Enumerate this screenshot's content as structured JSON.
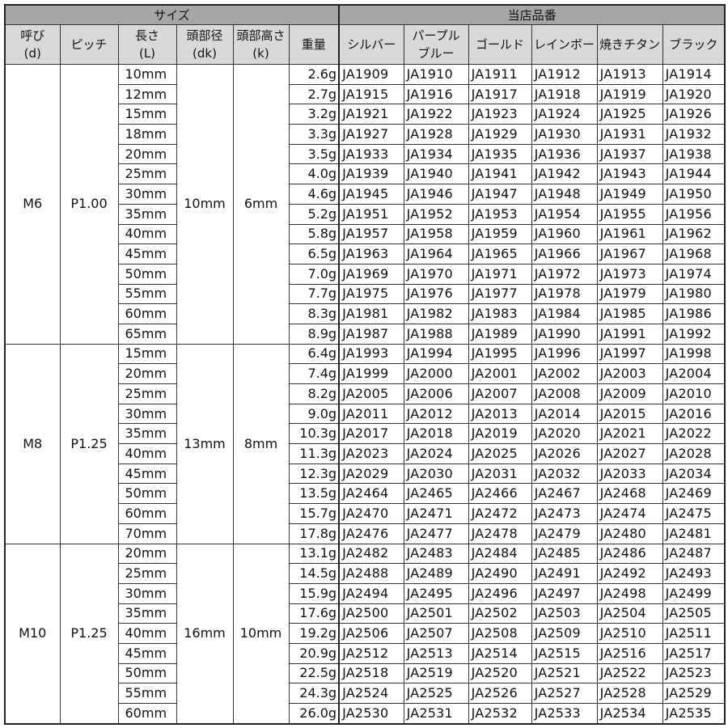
{
  "header": {
    "size_group": "サイズ",
    "code_group": "当店品番",
    "columns": {
      "nominal": [
        "呼び",
        "(d)"
      ],
      "pitch": "ピッチ",
      "length": [
        "長さ",
        "(L)"
      ],
      "head_dia": [
        "頭部径",
        "(dk)"
      ],
      "head_height": [
        "頭部高さ",
        "(k)"
      ],
      "weight": "重量",
      "colors": [
        [
          "シルバー"
        ],
        [
          "パープル",
          "ブルー"
        ],
        [
          "ゴールド"
        ],
        [
          "レインボー"
        ],
        [
          "焼きチタン"
        ],
        [
          "ブラック"
        ]
      ]
    }
  },
  "groups": [
    {
      "nominal": "M6",
      "pitch": "P1.00",
      "head_dia": "10mm",
      "head_height": "6mm",
      "rows": [
        {
          "length": "10mm",
          "weight": "2.6g",
          "codes": [
            "JA1909",
            "JA1910",
            "JA1911",
            "JA1912",
            "JA1913",
            "JA1914"
          ]
        },
        {
          "length": "12mm",
          "weight": "2.7g",
          "codes": [
            "JA1915",
            "JA1916",
            "JA1917",
            "JA1918",
            "JA1919",
            "JA1920"
          ]
        },
        {
          "length": "15mm",
          "weight": "3.2g",
          "codes": [
            "JA1921",
            "JA1922",
            "JA1923",
            "JA1924",
            "JA1925",
            "JA1926"
          ]
        },
        {
          "length": "18mm",
          "weight": "3.3g",
          "codes": [
            "JA1927",
            "JA1928",
            "JA1929",
            "JA1930",
            "JA1931",
            "JA1932"
          ]
        },
        {
          "length": "20mm",
          "weight": "3.5g",
          "codes": [
            "JA1933",
            "JA1934",
            "JA1935",
            "JA1936",
            "JA1937",
            "JA1938"
          ]
        },
        {
          "length": "25mm",
          "weight": "4.0g",
          "codes": [
            "JA1939",
            "JA1940",
            "JA1941",
            "JA1942",
            "JA1943",
            "JA1944"
          ]
        },
        {
          "length": "30mm",
          "weight": "4.6g",
          "codes": [
            "JA1945",
            "JA1946",
            "JA1947",
            "JA1948",
            "JA1949",
            "JA1950"
          ]
        },
        {
          "length": "35mm",
          "weight": "5.2g",
          "codes": [
            "JA1951",
            "JA1952",
            "JA1953",
            "JA1954",
            "JA1955",
            "JA1956"
          ]
        },
        {
          "length": "40mm",
          "weight": "5.8g",
          "codes": [
            "JA1957",
            "JA1958",
            "JA1959",
            "JA1960",
            "JA1961",
            "JA1962"
          ]
        },
        {
          "length": "45mm",
          "weight": "6.5g",
          "codes": [
            "JA1963",
            "JA1964",
            "JA1965",
            "JA1966",
            "JA1967",
            "JA1968"
          ]
        },
        {
          "length": "50mm",
          "weight": "7.0g",
          "codes": [
            "JA1969",
            "JA1970",
            "JA1971",
            "JA1972",
            "JA1973",
            "JA1974"
          ]
        },
        {
          "length": "55mm",
          "weight": "7.7g",
          "codes": [
            "JA1975",
            "JA1976",
            "JA1977",
            "JA1978",
            "JA1979",
            "JA1980"
          ]
        },
        {
          "length": "60mm",
          "weight": "8.3g",
          "codes": [
            "JA1981",
            "JA1982",
            "JA1983",
            "JA1984",
            "JA1985",
            "JA1986"
          ]
        },
        {
          "length": "65mm",
          "weight": "8.9g",
          "codes": [
            "JA1987",
            "JA1988",
            "JA1989",
            "JA1990",
            "JA1991",
            "JA1992"
          ]
        }
      ]
    },
    {
      "nominal": "M8",
      "pitch": "P1.25",
      "head_dia": "13mm",
      "head_height": "8mm",
      "rows": [
        {
          "length": "15mm",
          "weight": "6.4g",
          "codes": [
            "JA1993",
            "JA1994",
            "JA1995",
            "JA1996",
            "JA1997",
            "JA1998"
          ]
        },
        {
          "length": "20mm",
          "weight": "7.4g",
          "codes": [
            "JA1999",
            "JA2000",
            "JA2001",
            "JA2002",
            "JA2003",
            "JA2004"
          ]
        },
        {
          "length": "25mm",
          "weight": "8.2g",
          "codes": [
            "JA2005",
            "JA2006",
            "JA2007",
            "JA2008",
            "JA2009",
            "JA2010"
          ]
        },
        {
          "length": "30mm",
          "weight": "9.0g",
          "codes": [
            "JA2011",
            "JA2012",
            "JA2013",
            "JA2014",
            "JA2015",
            "JA2016"
          ]
        },
        {
          "length": "35mm",
          "weight": "10.3g",
          "codes": [
            "JA2017",
            "JA2018",
            "JA2019",
            "JA2020",
            "JA2021",
            "JA2022"
          ]
        },
        {
          "length": "40mm",
          "weight": "11.3g",
          "codes": [
            "JA2023",
            "JA2024",
            "JA2025",
            "JA2026",
            "JA2027",
            "JA2028"
          ]
        },
        {
          "length": "45mm",
          "weight": "12.3g",
          "codes": [
            "JA2029",
            "JA2030",
            "JA2031",
            "JA2032",
            "JA2033",
            "JA2034"
          ]
        },
        {
          "length": "50mm",
          "weight": "13.5g",
          "codes": [
            "JA2464",
            "JA2465",
            "JA2466",
            "JA2467",
            "JA2468",
            "JA2469"
          ]
        },
        {
          "length": "60mm",
          "weight": "15.7g",
          "codes": [
            "JA2470",
            "JA2471",
            "JA2472",
            "JA2473",
            "JA2474",
            "JA2475"
          ]
        },
        {
          "length": "70mm",
          "weight": "17.8g",
          "codes": [
            "JA2476",
            "JA2477",
            "JA2478",
            "JA2479",
            "JA2480",
            "JA2481"
          ]
        }
      ]
    },
    {
      "nominal": "M10",
      "pitch": "P1.25",
      "head_dia": "16mm",
      "head_height": "10mm",
      "rows": [
        {
          "length": "20mm",
          "weight": "13.1g",
          "codes": [
            "JA2482",
            "JA2483",
            "JA2484",
            "JA2485",
            "JA2486",
            "JA2487"
          ]
        },
        {
          "length": "25mm",
          "weight": "14.5g",
          "codes": [
            "JA2488",
            "JA2489",
            "JA2490",
            "JA2491",
            "JA2492",
            "JA2493"
          ]
        },
        {
          "length": "30mm",
          "weight": "15.9g",
          "codes": [
            "JA2494",
            "JA2495",
            "JA2496",
            "JA2497",
            "JA2498",
            "JA2499"
          ]
        },
        {
          "length": "35mm",
          "weight": "17.6g",
          "codes": [
            "JA2500",
            "JA2501",
            "JA2502",
            "JA2503",
            "JA2504",
            "JA2505"
          ]
        },
        {
          "length": "40mm",
          "weight": "19.2g",
          "codes": [
            "JA2506",
            "JA2507",
            "JA2508",
            "JA2509",
            "JA2510",
            "JA2511"
          ]
        },
        {
          "length": "45mm",
          "weight": "20.9g",
          "codes": [
            "JA2512",
            "JA2513",
            "JA2514",
            "JA2515",
            "JA2516",
            "JA2517"
          ]
        },
        {
          "length": "50mm",
          "weight": "22.5g",
          "codes": [
            "JA2518",
            "JA2519",
            "JA2520",
            "JA2521",
            "JA2522",
            "JA2523"
          ]
        },
        {
          "length": "55mm",
          "weight": "24.3g",
          "codes": [
            "JA2524",
            "JA2525",
            "JA2526",
            "JA2527",
            "JA2528",
            "JA2529"
          ]
        },
        {
          "length": "60mm",
          "weight": "26.0g",
          "codes": [
            "JA2530",
            "JA2531",
            "JA2532",
            "JA2533",
            "JA2534",
            "JA2535"
          ]
        }
      ]
    }
  ],
  "colors": {
    "group_header_bg": "#a6a6a6",
    "column_header_bg": "#d9d9d9",
    "border": "#333333"
  }
}
